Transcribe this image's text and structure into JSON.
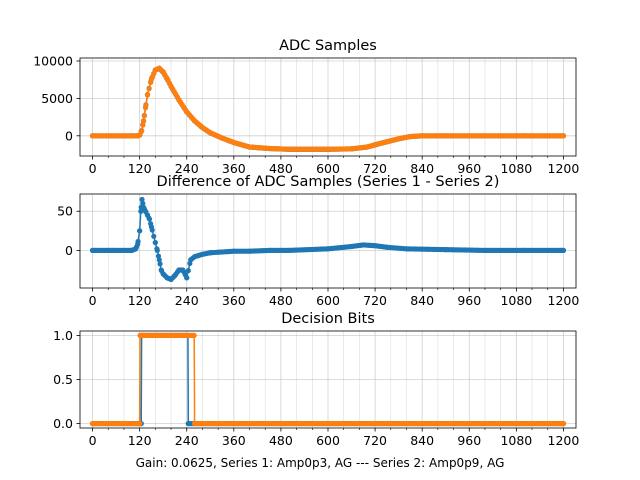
{
  "figure": {
    "footer": "Gain: 0.0625, Series 1: Amp0p3, AG --- Series 2: Amp0p9, AG"
  },
  "colors": {
    "series1": "#1f77b4",
    "series2": "#ff7f0e",
    "grid": "#b0b0b0",
    "axis": "#000000"
  },
  "chart_data": [
    {
      "type": "line",
      "title": "ADC Samples",
      "xlabel": "",
      "ylabel": "",
      "xlim": [
        -32,
        1232
      ],
      "ylim": [
        -2700,
        10400
      ],
      "grid": true,
      "xticks": [
        0,
        120,
        240,
        360,
        480,
        600,
        720,
        840,
        960,
        1080,
        1200
      ],
      "xtick_labels": [
        "0",
        "120",
        "240",
        "360",
        "480",
        "600",
        "720",
        "840",
        "960",
        "1080",
        "1200"
      ],
      "yticks": [
        0,
        5000,
        10000
      ],
      "ytick_labels": [
        "0",
        "5000",
        "10000"
      ],
      "series": [
        {
          "name": "Series 1",
          "x": [
            0,
            100,
            115,
            120,
            125,
            130,
            135,
            140,
            150,
            160,
            170,
            180,
            190,
            200,
            220,
            240,
            260,
            280,
            300,
            330,
            360,
            400,
            450,
            500,
            600,
            660,
            700,
            720,
            750,
            780,
            810,
            840,
            900,
            1000,
            1100,
            1200
          ],
          "values": [
            0,
            0,
            0,
            100,
            700,
            2000,
            3800,
            5500,
            7600,
            8800,
            9000,
            8500,
            7600,
            6600,
            4800,
            3200,
            2000,
            1100,
            400,
            -300,
            -900,
            -1500,
            -1700,
            -1800,
            -1800,
            -1750,
            -1500,
            -1200,
            -800,
            -400,
            -100,
            0,
            0,
            0,
            0,
            0
          ]
        },
        {
          "name": "Series 2",
          "x": [
            0,
            100,
            115,
            120,
            125,
            130,
            135,
            140,
            150,
            160,
            170,
            180,
            190,
            200,
            220,
            240,
            260,
            280,
            300,
            330,
            360,
            400,
            450,
            500,
            600,
            660,
            700,
            720,
            750,
            780,
            810,
            840,
            900,
            1000,
            1100,
            1200
          ],
          "values": [
            0,
            0,
            0,
            80,
            650,
            1950,
            3750,
            5450,
            7550,
            8780,
            9050,
            8550,
            7650,
            6650,
            4820,
            3220,
            2010,
            1110,
            410,
            -290,
            -890,
            -1490,
            -1690,
            -1790,
            -1790,
            -1740,
            -1490,
            -1190,
            -790,
            -390,
            -90,
            0,
            0,
            0,
            0,
            0
          ]
        }
      ]
    },
    {
      "type": "line",
      "title": "Difference of ADC Samples (Series 1 - Series 2)",
      "xlabel": "",
      "ylabel": "",
      "xlim": [
        -32,
        1232
      ],
      "ylim": [
        -48,
        72
      ],
      "grid": true,
      "xticks": [
        0,
        120,
        240,
        360,
        480,
        600,
        720,
        840,
        960,
        1080,
        1200
      ],
      "xtick_labels": [
        "0",
        "120",
        "240",
        "360",
        "480",
        "600",
        "720",
        "840",
        "960",
        "1080",
        "1200"
      ],
      "yticks": [
        0,
        50
      ],
      "ytick_labels": [
        "0",
        "50"
      ],
      "series": [
        {
          "name": "Series 1 - Series 2",
          "x": [
            0,
            50,
            100,
            110,
            115,
            120,
            123,
            126,
            130,
            135,
            140,
            145,
            150,
            160,
            165,
            170,
            175,
            180,
            190,
            200,
            210,
            220,
            230,
            240,
            250,
            260,
            280,
            300,
            330,
            360,
            400,
            450,
            500,
            600,
            660,
            690,
            720,
            750,
            800,
            900,
            1000,
            1100,
            1200
          ],
          "values": [
            0,
            0,
            0,
            2,
            8,
            25,
            50,
            65,
            55,
            50,
            45,
            40,
            30,
            10,
            0,
            -12,
            -25,
            -30,
            -35,
            -37,
            -32,
            -25,
            -25,
            -35,
            -12,
            -8,
            -5,
            -3,
            -2,
            -1,
            -1,
            0,
            0,
            2,
            5,
            7,
            6,
            4,
            2,
            1,
            0,
            0,
            0
          ]
        }
      ]
    },
    {
      "type": "line",
      "title": "Decision Bits",
      "xlabel": "Gain: 0.0625, Series 1: Amp0p3, AG --- Series 2: Amp0p9, AG",
      "ylabel": "",
      "xlim": [
        -32,
        1232
      ],
      "ylim": [
        -0.05,
        1.05
      ],
      "grid": true,
      "xticks": [
        0,
        120,
        240,
        360,
        480,
        600,
        720,
        840,
        960,
        1080,
        1200
      ],
      "xtick_labels": [
        "0",
        "120",
        "240",
        "360",
        "480",
        "600",
        "720",
        "840",
        "960",
        "1080",
        "1200"
      ],
      "yticks": [
        0,
        0.5,
        1
      ],
      "ytick_labels": [
        "0.0",
        "0.5",
        "1.0"
      ],
      "series": [
        {
          "name": "Series 1",
          "x": [
            0,
            124,
            125,
            243,
            244,
            1200
          ],
          "values": [
            0,
            0,
            1,
            1,
            0,
            0
          ]
        },
        {
          "name": "Series 2",
          "x": [
            0,
            120,
            121,
            259,
            260,
            1200
          ],
          "values": [
            0,
            0,
            1,
            1,
            0,
            0
          ]
        }
      ]
    }
  ]
}
